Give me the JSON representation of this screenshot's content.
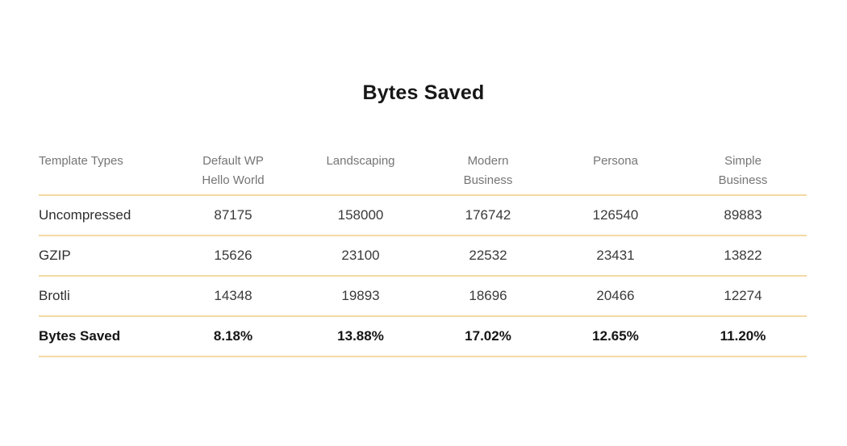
{
  "chart_data": {
    "type": "table",
    "title": "Bytes Saved",
    "columns": [
      "Template Types",
      "Default WP Hello World",
      "Landscaping",
      "Modern Business",
      "Persona",
      "Simple Business"
    ],
    "rows": [
      {
        "label": "Uncompressed",
        "values": [
          "87175",
          "158000",
          "176742",
          "126540",
          "89883"
        ]
      },
      {
        "label": "GZIP",
        "values": [
          "15626",
          "23100",
          "22532",
          "23431",
          "13822"
        ]
      },
      {
        "label": "Brotli",
        "values": [
          "14348",
          "19893",
          "18696",
          "20466",
          "12274"
        ]
      },
      {
        "label": "Bytes Saved",
        "values": [
          "8.18%",
          "13.88%",
          "17.02%",
          "12.65%",
          "11.20%"
        ]
      }
    ],
    "layout_hints": {
      "first_column_align": "left",
      "value_columns_align": "center",
      "bold_rows": [
        "Bytes Saved"
      ],
      "grid": "horizontal-dividers-only"
    }
  },
  "colors": {
    "background": "#ffffff",
    "divider": "#f3d9a2",
    "header_text": "#757575",
    "body_text": "#3a3a3a",
    "title_text": "#171717"
  }
}
